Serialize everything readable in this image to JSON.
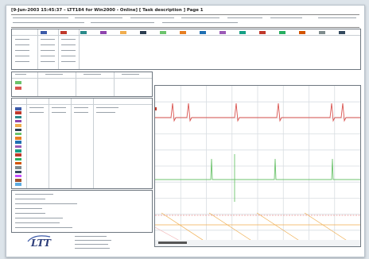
{
  "header": {
    "title": "[9-Jun-2003 15:45:37 – LTT184 for Win2000 - Online] [ Task description ] Page 1"
  },
  "footer": {
    "logo_text": "LTT"
  },
  "colors": {
    "trace_red": "#d9534f",
    "trace_green": "#6cc36c",
    "trace_orange": "#f0ad4e",
    "trace_pink": "#f3b6b6",
    "accent_blue": "#3c5aa8"
  },
  "channel_colors": [
    "#3c5aa8",
    "#c0392b",
    "#2a8a8a",
    "#8e44ad",
    "#f0ad4e",
    "#2c3e50",
    "#6cc36c",
    "#e67e22",
    "#1f6fb2",
    "#9b59b6",
    "#16a085",
    "#c0392b",
    "#27ae60",
    "#d35400",
    "#7f8c8d",
    "#34495e",
    "#c44dff",
    "#a0522d",
    "#5dade2"
  ]
}
